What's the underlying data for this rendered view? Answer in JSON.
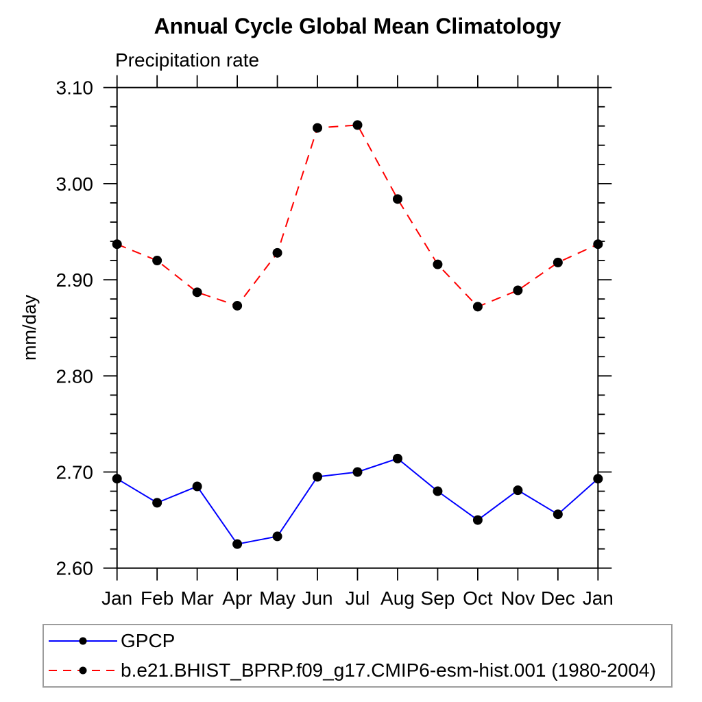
{
  "chart_data": {
    "type": "line",
    "title": "Annual Cycle Global Mean Climatology",
    "subtitle": "Precipitation rate",
    "ylabel": "mm/day",
    "ylim": [
      2.6,
      3.1
    ],
    "y_major_tick_step": 0.1,
    "y_minor_tick_step": 0.02,
    "y_tick_labels": [
      "3.10",
      "3.00",
      "2.90",
      "2.80",
      "2.70",
      "2.60"
    ],
    "x_categories": [
      "Jan",
      "Feb",
      "Mar",
      "Apr",
      "May",
      "Jun",
      "Jul",
      "Aug",
      "Sep",
      "Oct",
      "Nov",
      "Dec",
      "Jan"
    ],
    "grid": false,
    "legend_position": "bottom",
    "axis_color": "#000000",
    "marker_color": "#000000",
    "series": [
      {
        "name": "GPCP",
        "color": "#0000ff",
        "line_style": "solid",
        "marker": "filled-circle",
        "values": [
          2.693,
          2.668,
          2.685,
          2.625,
          2.633,
          2.695,
          2.7,
          2.714,
          2.68,
          2.65,
          2.681,
          2.656,
          2.693
        ]
      },
      {
        "name": "b.e21.BHIST_BPRP.f09_g17.CMIP6-esm-hist.001 (1980-2004)",
        "color": "#ff0000",
        "line_style": "dashed",
        "marker": "filled-circle",
        "values": [
          2.937,
          2.92,
          2.887,
          2.873,
          2.928,
          3.058,
          3.061,
          2.984,
          2.916,
          2.872,
          2.889,
          2.918,
          2.937
        ]
      }
    ]
  }
}
